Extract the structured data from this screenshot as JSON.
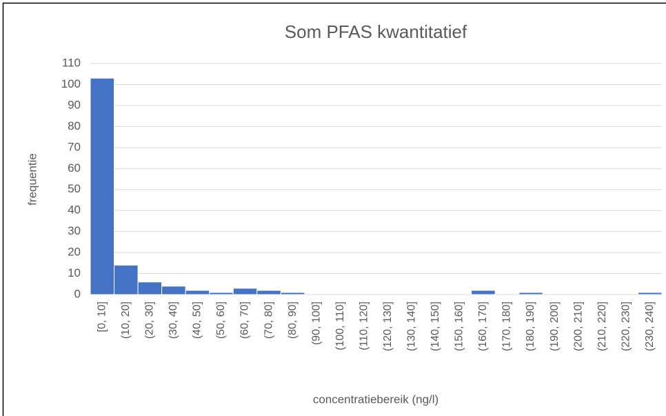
{
  "chart_data": {
    "type": "bar",
    "title": "Som PFAS kwantitatief",
    "x_label": "concentratiebereik (ng/l)",
    "y_label": "frequentie",
    "categories": [
      "[0, 10]",
      "(10, 20]",
      "(20, 30]",
      "(30, 40]",
      "(40, 50]",
      "(50, 60]",
      "(60, 70]",
      "(70, 80]",
      "(80, 90]",
      "(90, 100]",
      "(100, 110]",
      "(110, 120]",
      "(120, 130]",
      "(130, 140]",
      "(140, 150]",
      "(150, 160]",
      "(160, 170]",
      "(170, 180]",
      "(180, 190]",
      "(190, 200]",
      "(200, 210]",
      "(210, 220]",
      "(220, 230]",
      "(230, 240]"
    ],
    "values": [
      103,
      14,
      6,
      4,
      2,
      1,
      3,
      2,
      1,
      0,
      0,
      0,
      0,
      0,
      0,
      0,
      2,
      0,
      1,
      0,
      0,
      0,
      0,
      1
    ],
    "color": "#4472c4",
    "ylim": [
      0,
      110
    ],
    "yticks": [
      0,
      10,
      20,
      30,
      40,
      50,
      60,
      70,
      80,
      90,
      100,
      110
    ],
    "grid": true
  }
}
